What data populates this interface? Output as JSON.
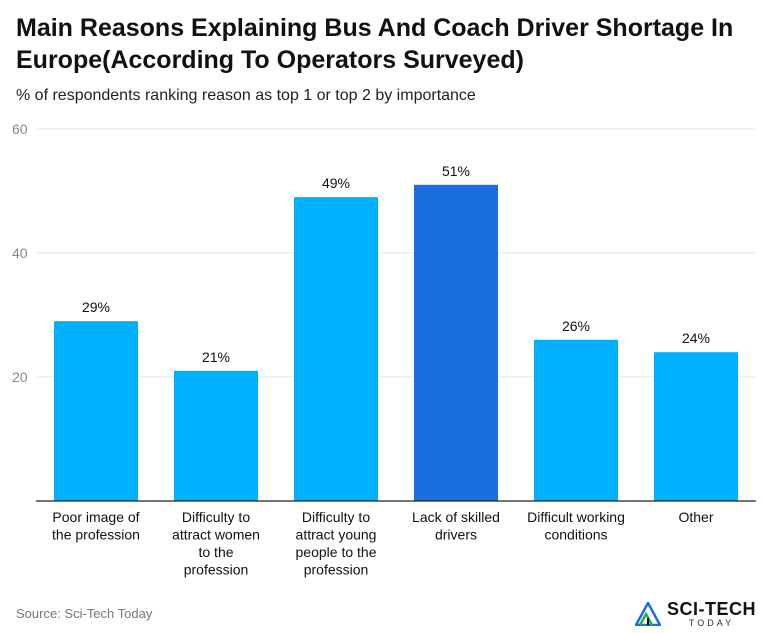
{
  "chart_data": {
    "type": "bar",
    "title": "Main Reasons Explaining Bus And Coach Driver Shortage In Europe(According To Operators Surveyed)",
    "subtitle": "% of respondents ranking reason as top 1 or top 2 by importance",
    "categories": [
      [
        "Poor image of",
        "the profession"
      ],
      [
        "Difficulty to",
        "attract women",
        "to the",
        "profession"
      ],
      [
        "Difficulty to",
        "attract young",
        "people to the",
        "profession"
      ],
      [
        "Lack of skilled",
        "drivers"
      ],
      [
        "Difficult working",
        "conditions"
      ],
      [
        "Other"
      ]
    ],
    "values": [
      29,
      21,
      49,
      51,
      26,
      24
    ],
    "value_labels": [
      "29%",
      "21%",
      "49%",
      "51%",
      "26%",
      "24%"
    ],
    "ylim": [
      0,
      60
    ],
    "yticks": [
      20,
      40,
      60
    ],
    "ytick_labels": [
      "20",
      "40",
      "60"
    ],
    "colors": {
      "default": "#00b0ff",
      "highlight": "#1a6fe0",
      "grid": "#e6e6e6",
      "axis": "#222222"
    },
    "highlight_index": 3,
    "grid": true
  },
  "footer": {
    "source": "Source: Sci-Tech Today",
    "logo_main": "SCI-TECH",
    "logo_sub": "TODAY",
    "logo_icon": "triangle-logo-icon"
  }
}
